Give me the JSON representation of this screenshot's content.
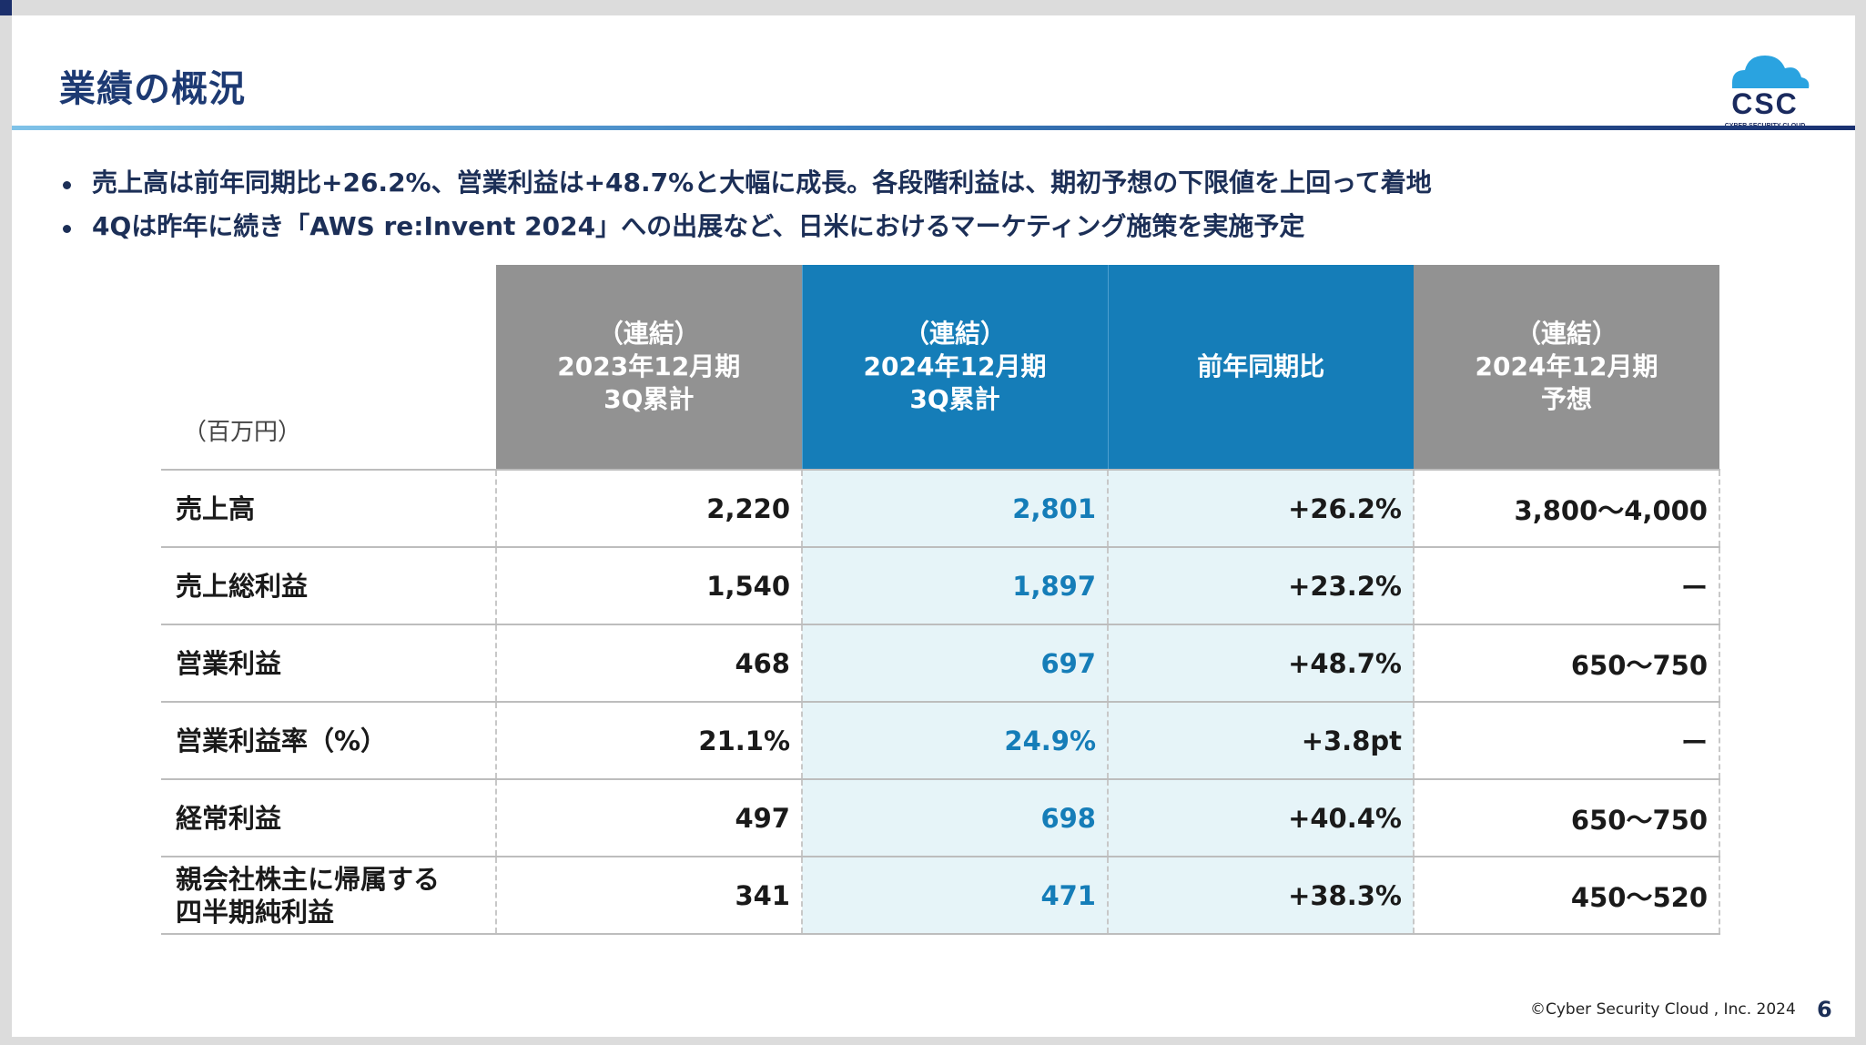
{
  "header": {
    "title": "業績の概況",
    "logo_text": "CSC",
    "logo_subtext": "CYBER SECURITY CLOUD"
  },
  "bullets": [
    "売上高は前年同期比+26.2%、営業利益は+48.7%と大幅に成長。各段階利益は、期初予想の下限値を上回って着地",
    "4Qは昨年に続き「AWS re:Invent 2024」への出展など、日米におけるマーケティング施策を実施予定"
  ],
  "table": {
    "unit": "（百万円）",
    "columns": [
      {
        "lines": [
          "（連結）",
          "2023年12月期",
          "3Q累計"
        ]
      },
      {
        "lines": [
          "（連結）",
          "2024年12月期",
          "3Q累計"
        ]
      },
      {
        "lines": [
          "前年同期比"
        ]
      },
      {
        "lines": [
          "（連結）",
          "2024年12月期",
          "予想"
        ]
      }
    ],
    "rows": [
      {
        "label": [
          "売上高"
        ],
        "prev": "2,220",
        "cur": "2,801",
        "yoy": "+26.2%",
        "forecast": "3,800～4,000"
      },
      {
        "label": [
          "売上総利益"
        ],
        "prev": "1,540",
        "cur": "1,897",
        "yoy": "+23.2%",
        "forecast": "ー"
      },
      {
        "label": [
          "営業利益"
        ],
        "prev": "468",
        "cur": "697",
        "yoy": "+48.7%",
        "forecast": "650～750"
      },
      {
        "label": [
          "営業利益率（%）"
        ],
        "prev": "21.1%",
        "cur": "24.9%",
        "yoy": "+3.8pt",
        "forecast": "ー"
      },
      {
        "label": [
          "経常利益"
        ],
        "prev": "497",
        "cur": "698",
        "yoy": "+40.4%",
        "forecast": "650～750"
      },
      {
        "label": [
          "親会社株主に帰属する",
          "四半期純利益"
        ],
        "prev": "341",
        "cur": "471",
        "yoy": "+38.3%",
        "forecast": "450～520"
      }
    ]
  },
  "footer": {
    "copyright": "©Cyber Security Cloud , Inc. 2024",
    "page_number": "6"
  },
  "colors": {
    "title": "#1d3a73",
    "header_gray": "#929292",
    "header_blue": "#157db8",
    "highlight_bg": "#e6f4f8",
    "logo_blue": "#2aa3e0"
  }
}
